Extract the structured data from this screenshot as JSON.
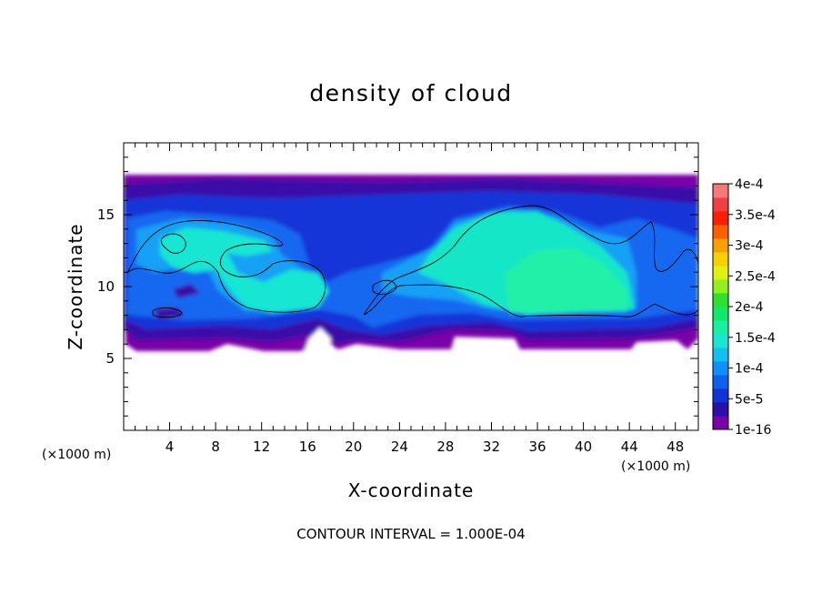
{
  "chart_data": {
    "type": "heatmap",
    "title": "density of cloud",
    "xlabel": "X-coordinate",
    "ylabel": "Z-coordinate",
    "x_unit": "(×1000 m)",
    "z_unit": "(×1000 m)",
    "xlim": [
      0,
      50
    ],
    "ylim": [
      0,
      20
    ],
    "x_ticks": [
      4,
      8,
      12,
      16,
      20,
      24,
      28,
      32,
      36,
      40,
      44,
      48
    ],
    "y_ticks": [
      5,
      10,
      15
    ],
    "colorbar_labels": [
      "1e-16",
      "5e-5",
      "1e-4",
      "1.5e-4",
      "2e-4",
      "2.5e-4",
      "3e-4",
      "3.5e-4",
      "4e-4"
    ],
    "colorbar_colors": [
      "#7a00a8",
      "#2a10a8",
      "#1034d8",
      "#1060f0",
      "#0e90f8",
      "#10c0f0",
      "#18e6d2",
      "#18f0a0",
      "#10e86a",
      "#30e030",
      "#90f020",
      "#e0f010",
      "#f8d000",
      "#f8a000",
      "#f86000",
      "#f82000",
      "#f04040",
      "#f87878"
    ],
    "cloud_layer_z": [
      5.8,
      17.7
    ],
    "clear_x_regions": [
      [
        17,
        19.5
      ]
    ],
    "contour_levels": [
      0.0001
    ],
    "contour_interval_text": "CONTOUR INTERVAL = 1.000E-04"
  }
}
